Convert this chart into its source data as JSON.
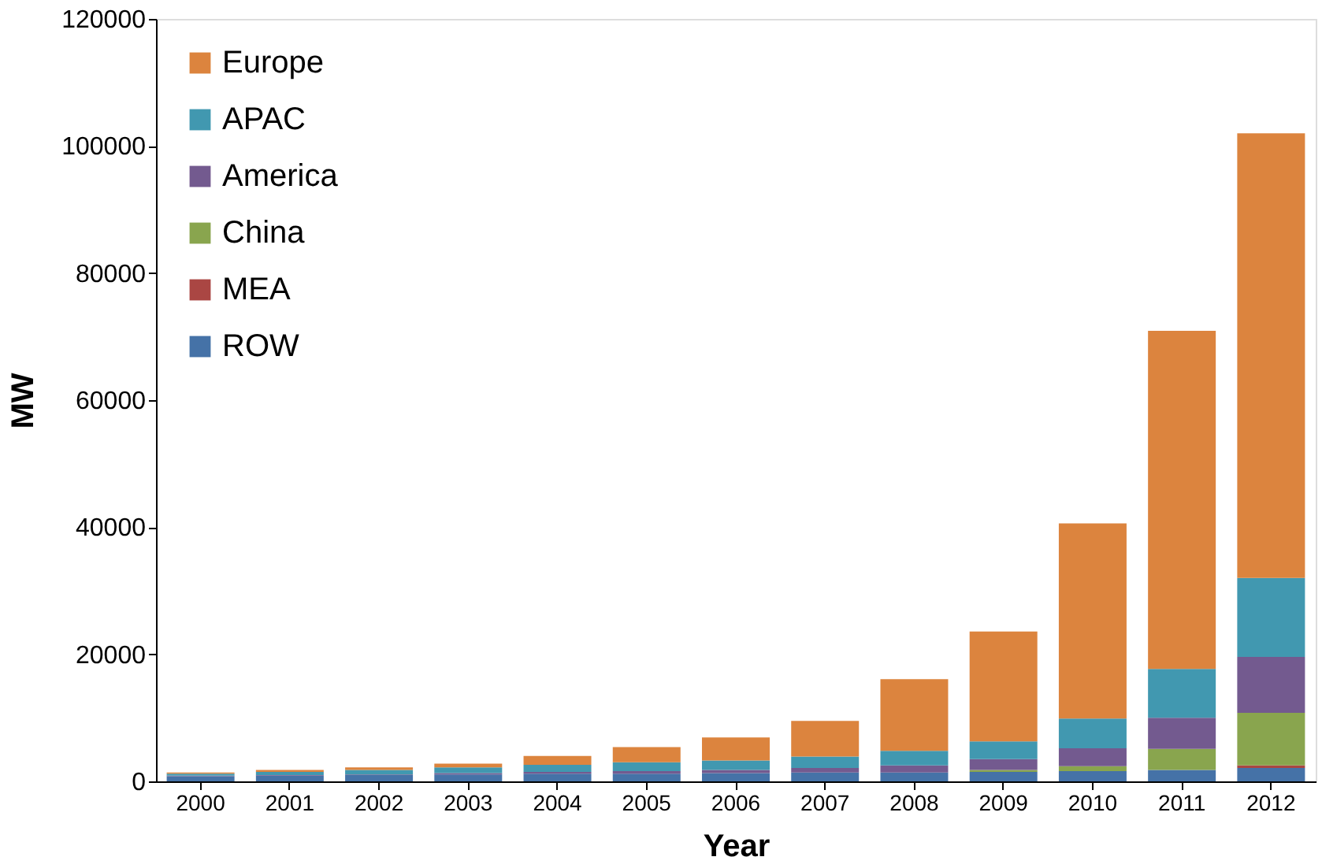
{
  "chart_data": {
    "type": "bar",
    "stacked": true,
    "xlabel": "Year",
    "ylabel": "MW",
    "categories": [
      "2000",
      "2001",
      "2002",
      "2003",
      "2004",
      "2005",
      "2006",
      "2007",
      "2008",
      "2009",
      "2010",
      "2011",
      "2012"
    ],
    "ylim": [
      0,
      120000
    ],
    "yticks": [
      0,
      20000,
      40000,
      60000,
      80000,
      100000,
      120000
    ],
    "grid": false,
    "legend": "top left",
    "series": [
      {
        "name": "ROW",
        "color": "#4572a7",
        "values": [
          800,
          900,
          1000,
          1100,
          1200,
          1200,
          1300,
          1400,
          1400,
          1500,
          1600,
          1800,
          2100
        ]
      },
      {
        "name": "MEA",
        "color": "#aa4643",
        "values": [
          0,
          0,
          0,
          0,
          0,
          0,
          0,
          0,
          0,
          0,
          0,
          0,
          400
        ]
      },
      {
        "name": "China",
        "color": "#89a54e",
        "values": [
          0,
          0,
          0,
          0,
          0,
          0,
          0,
          0,
          0,
          300,
          800,
          3300,
          8300
        ]
      },
      {
        "name": "America",
        "color": "#735a8f",
        "values": [
          100,
          100,
          100,
          200,
          300,
          400,
          500,
          700,
          1100,
          1700,
          2800,
          4900,
          8800
        ]
      },
      {
        "name": "APAC",
        "color": "#4198b0",
        "values": [
          300,
          500,
          700,
          900,
          1100,
          1400,
          1500,
          1800,
          2300,
          2800,
          4700,
          7700,
          12400
        ]
      },
      {
        "name": "Europe",
        "color": "#dc843e",
        "values": [
          200,
          300,
          400,
          600,
          1400,
          2400,
          3600,
          5600,
          11300,
          17300,
          30700,
          53200,
          70000
        ]
      }
    ]
  }
}
